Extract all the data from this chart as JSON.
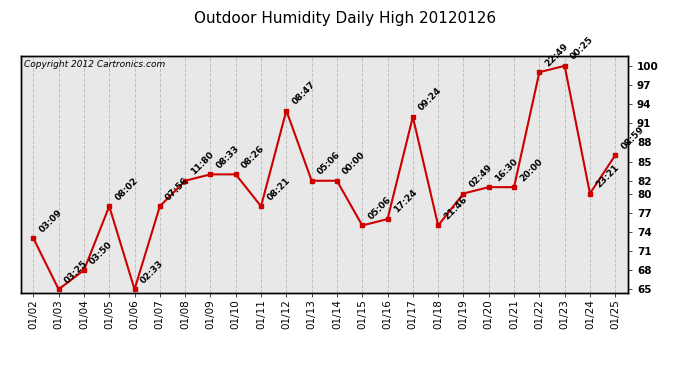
{
  "title": "Outdoor Humidity Daily High 20120126",
  "copyright_text": "Copyright 2012 Cartronics.com",
  "x_labels": [
    "01/02",
    "01/03",
    "01/04",
    "01/05",
    "01/06",
    "01/07",
    "01/08",
    "01/09",
    "01/10",
    "01/11",
    "01/12",
    "01/13",
    "01/14",
    "01/15",
    "01/16",
    "01/17",
    "01/18",
    "01/19",
    "01/20",
    "01/21",
    "01/22",
    "01/23",
    "01/24",
    "01/25"
  ],
  "y_values": [
    73,
    65,
    68,
    78,
    65,
    78,
    82,
    83,
    83,
    78,
    93,
    82,
    82,
    75,
    76,
    92,
    75,
    80,
    81,
    81,
    99,
    100,
    80,
    86
  ],
  "annotations": [
    "03:09",
    "03:25",
    "03:50",
    "08:02",
    "02:33",
    "07:56",
    "11:80",
    "08:33",
    "08:26",
    "08:21",
    "08:47",
    "05:06",
    "00:00",
    "05:06",
    "17:24",
    "09:24",
    "21:46",
    "02:49",
    "16:30",
    "20:00",
    "22:49",
    "00:25",
    "23:21",
    "08:59"
  ],
  "y_min": 65,
  "y_max": 100,
  "y_ticks": [
    65,
    68,
    71,
    74,
    77,
    80,
    82,
    85,
    88,
    91,
    94,
    97,
    100
  ],
  "line_color": "#cc0000",
  "marker_color": "#cc0000",
  "grid_color": "#c0c0c0",
  "bg_color": "#e8e8e8",
  "outer_bg": "#ffffff",
  "title_fontsize": 11,
  "tick_fontsize": 7.5,
  "annot_fontsize": 6.5,
  "copyright_fontsize": 6.5
}
